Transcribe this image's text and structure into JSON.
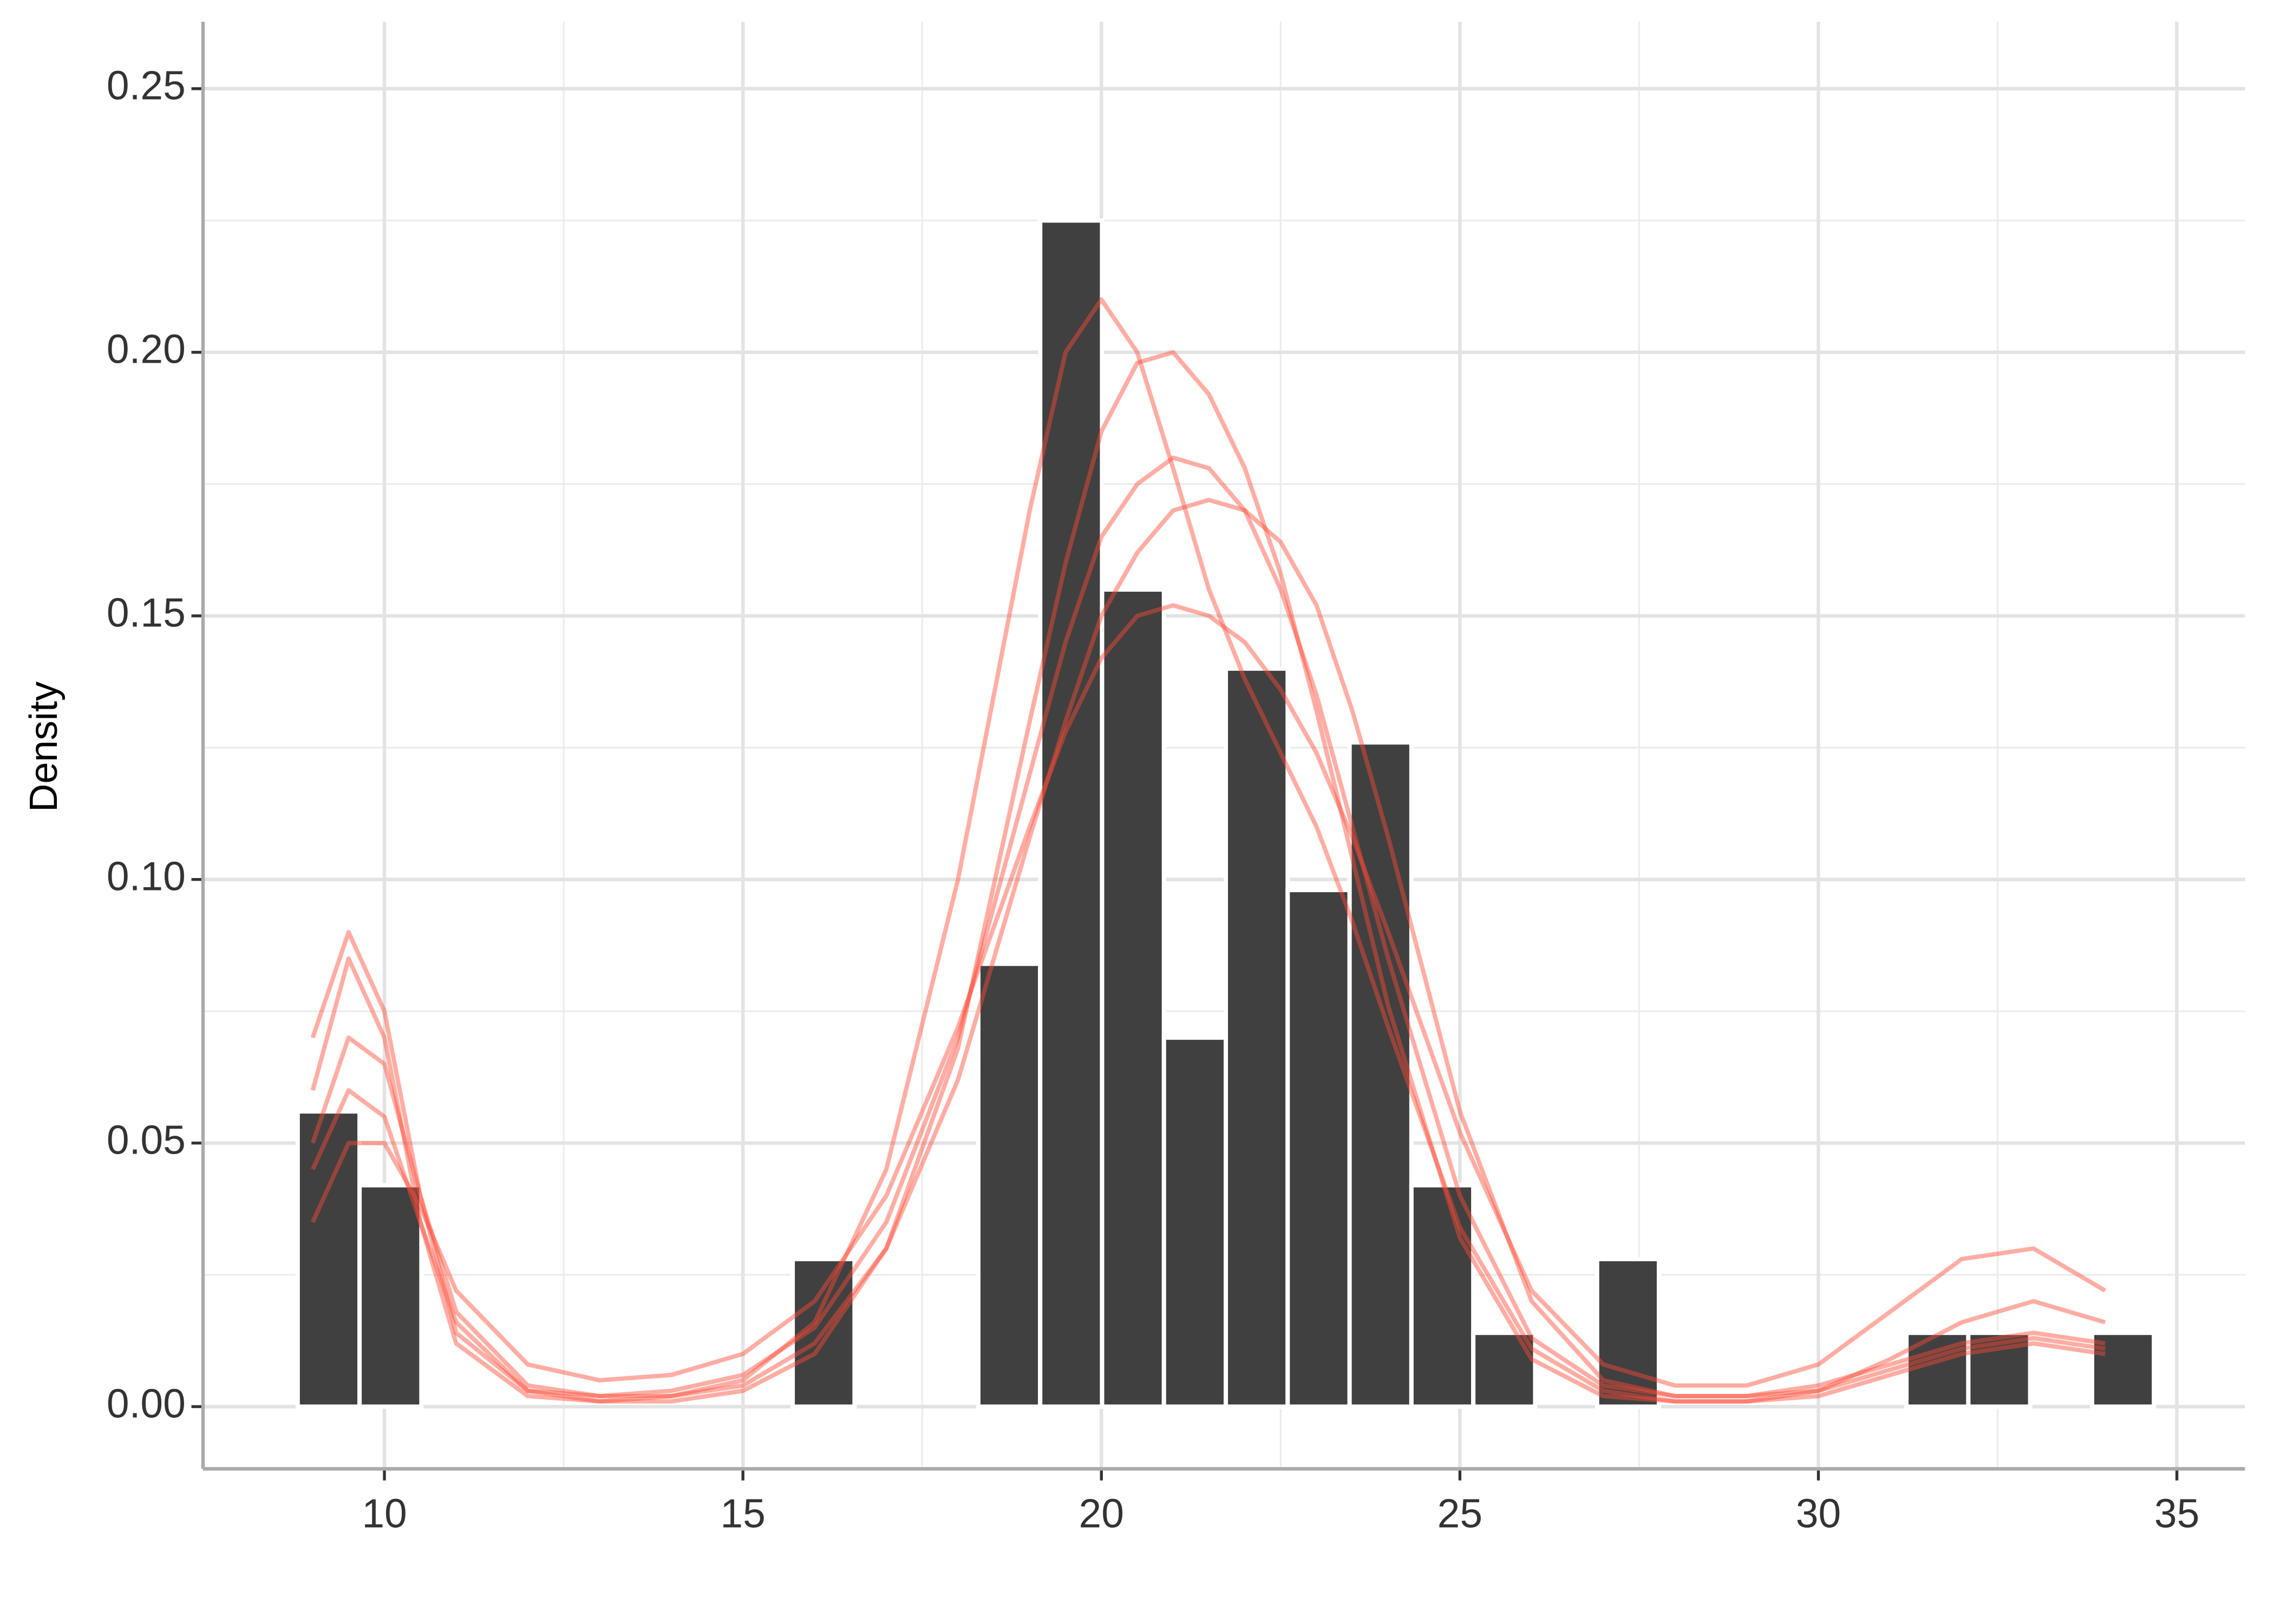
{
  "chart_data": {
    "type": "histogram",
    "ylabel": "Density",
    "bins": [
      8.79,
      9.653,
      10.516,
      11.379,
      12.242,
      13.105,
      13.968,
      14.831,
      15.694,
      16.557,
      17.42,
      18.283,
      19.146,
      20.009,
      20.872,
      21.735,
      22.598,
      23.461,
      24.324,
      25.187,
      26.05,
      26.913,
      27.776,
      28.639,
      29.502,
      30.365,
      31.228,
      32.091,
      32.954,
      33.817,
      34.68
    ],
    "values": [
      0.056,
      0.042,
      0,
      0,
      0,
      0,
      0,
      0,
      0.028,
      0,
      0,
      0.084,
      0.225,
      0.155,
      0.07,
      0.14,
      0.098,
      0.126,
      0.042,
      0.014,
      0,
      0.028,
      0,
      0,
      0,
      0,
      0.014,
      0.014,
      0,
      0.014
    ],
    "color": "#404040",
    "curve_color": "#ff4a36",
    "curve_x": [
      9,
      9.5,
      10,
      10.5,
      11,
      12,
      13,
      14,
      15,
      16,
      17,
      18,
      19,
      19.5,
      20,
      20.5,
      21,
      21.5,
      22,
      22.5,
      23,
      23.5,
      24,
      25,
      26,
      27,
      28,
      29,
      30,
      31,
      32,
      33,
      34
    ],
    "curves": [
      {
        "values": [
          0.05,
          0.07,
          0.065,
          0.04,
          0.018,
          0.004,
          0.002,
          0.003,
          0.006,
          0.015,
          0.035,
          0.07,
          0.12,
          0.145,
          0.165,
          0.175,
          0.18,
          0.178,
          0.17,
          0.155,
          0.135,
          0.11,
          0.085,
          0.04,
          0.013,
          0.004,
          0.002,
          0.002,
          0.004,
          0.008,
          0.012,
          0.014,
          0.012
        ]
      },
      {
        "values": [
          0.06,
          0.085,
          0.07,
          0.035,
          0.012,
          0.002,
          0.001,
          0.001,
          0.003,
          0.01,
          0.03,
          0.068,
          0.13,
          0.16,
          0.185,
          0.198,
          0.2,
          0.192,
          0.178,
          0.158,
          0.132,
          0.104,
          0.076,
          0.032,
          0.009,
          0.002,
          0.001,
          0.001,
          0.002,
          0.006,
          0.01,
          0.012,
          0.01
        ]
      },
      {
        "values": [
          0.035,
          0.05,
          0.05,
          0.038,
          0.022,
          0.008,
          0.005,
          0.006,
          0.01,
          0.02,
          0.04,
          0.072,
          0.11,
          0.128,
          0.142,
          0.15,
          0.152,
          0.15,
          0.145,
          0.136,
          0.124,
          0.108,
          0.09,
          0.052,
          0.022,
          0.008,
          0.004,
          0.004,
          0.008,
          0.018,
          0.028,
          0.03,
          0.022
        ]
      },
      {
        "values": [
          0.045,
          0.06,
          0.055,
          0.035,
          0.016,
          0.003,
          0.001,
          0.002,
          0.005,
          0.016,
          0.045,
          0.1,
          0.17,
          0.2,
          0.21,
          0.2,
          0.178,
          0.155,
          0.138,
          0.124,
          0.11,
          0.092,
          0.072,
          0.034,
          0.011,
          0.003,
          0.001,
          0.001,
          0.003,
          0.007,
          0.011,
          0.013,
          0.011
        ]
      },
      {
        "values": [
          0.07,
          0.09,
          0.075,
          0.04,
          0.014,
          0.003,
          0.002,
          0.002,
          0.004,
          0.012,
          0.03,
          0.062,
          0.108,
          0.13,
          0.15,
          0.162,
          0.17,
          0.172,
          0.17,
          0.164,
          0.152,
          0.132,
          0.108,
          0.056,
          0.02,
          0.005,
          0.002,
          0.002,
          0.003,
          0.009,
          0.016,
          0.02,
          0.016
        ]
      }
    ],
    "xlim": [
      7.47,
      35.95
    ],
    "ylim": [
      -0.0118,
      0.2627
    ],
    "xticks": [
      10,
      15,
      20,
      25,
      30,
      35
    ],
    "yticks": [
      {
        "value": 0,
        "label": "0.00"
      },
      {
        "value": 0.05,
        "label": "0.05"
      },
      {
        "value": 0.1,
        "label": "0.10"
      },
      {
        "value": 0.15,
        "label": "0.15"
      },
      {
        "value": 0.2,
        "label": "0.20"
      },
      {
        "value": 0.25,
        "label": "0.25"
      }
    ],
    "xminor": [
      12.5,
      17.5,
      22.5,
      27.5,
      32.5
    ],
    "yminor": [
      0.025,
      0.075,
      0.125,
      0.175,
      0.225
    ],
    "grid": true
  }
}
